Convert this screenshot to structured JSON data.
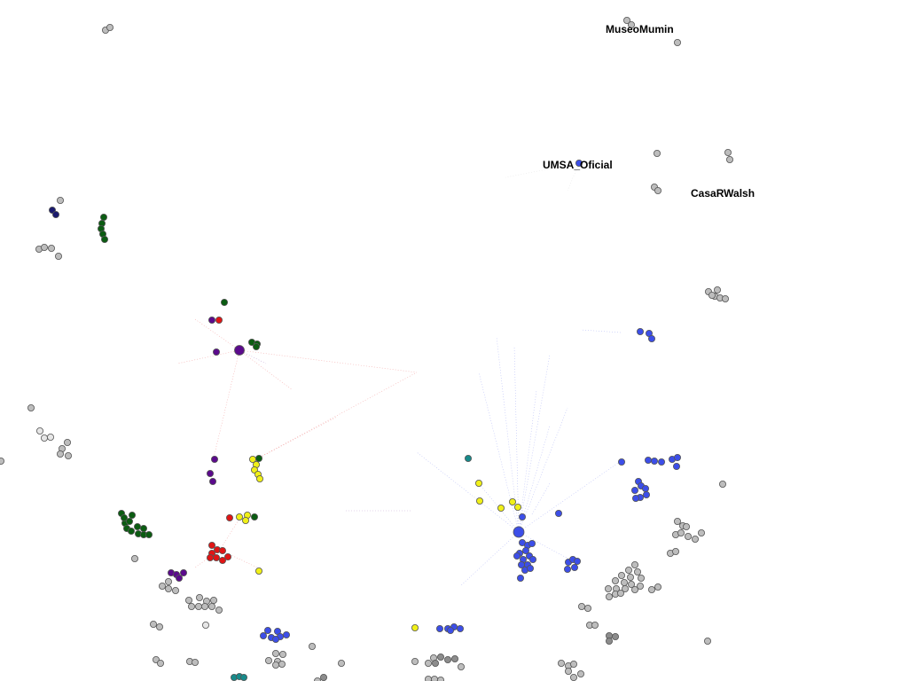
{
  "graph": {
    "labels": [
      "MuseoMumin",
      "UMSA_Oficial",
      "CasaRWalsh"
    ],
    "colors": {
      "blue": "#3c4ee8",
      "green": "#0b5c12",
      "purple": "#5b0a8c",
      "red": "#e01515",
      "yellow": "#f0f018",
      "teal": "#178a8a",
      "navy": "#1a1a6e",
      "gray": "#bdbdbd",
      "darkgray": "#8c8c8c",
      "lightgray": "#e6e6e6"
    }
  }
}
